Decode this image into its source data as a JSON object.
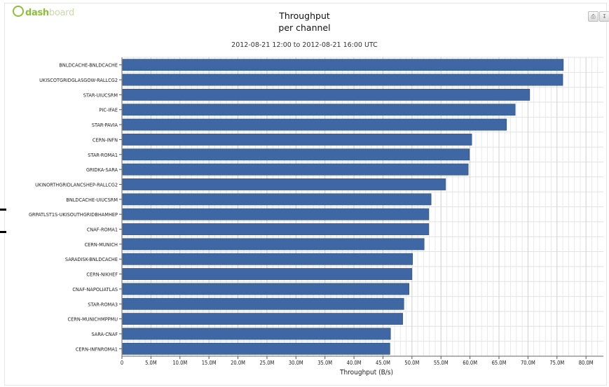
{
  "brand": {
    "prefix": "dash",
    "suffix": "board"
  },
  "chart_data": {
    "type": "bar",
    "orientation": "horizontal",
    "title_lines": [
      "Throughput",
      "per channel"
    ],
    "subtitle": "2012-08-21 12:00 to 2012-08-21 16:00 UTC",
    "xlabel": "Throughput (B/s)",
    "xlim": [
      0,
      83000000
    ],
    "x_ticks": [
      {
        "value": 0,
        "label": "0"
      },
      {
        "value": 5000000,
        "label": "5.0M"
      },
      {
        "value": 10000000,
        "label": "10.0M"
      },
      {
        "value": 15000000,
        "label": "15.0M"
      },
      {
        "value": 20000000,
        "label": "20.0M"
      },
      {
        "value": 25000000,
        "label": "25.0M"
      },
      {
        "value": 30000000,
        "label": "30.0M"
      },
      {
        "value": 35000000,
        "label": "35.0M"
      },
      {
        "value": 40000000,
        "label": "40.0M"
      },
      {
        "value": 45000000,
        "label": "45.0M"
      },
      {
        "value": 50000000,
        "label": "50.0M"
      },
      {
        "value": 55000000,
        "label": "55.0M"
      },
      {
        "value": 60000000,
        "label": "60.0M"
      },
      {
        "value": 65000000,
        "label": "65.0M"
      },
      {
        "value": 70000000,
        "label": "70.0M"
      },
      {
        "value": 75000000,
        "label": "75.0M"
      },
      {
        "value": 80000000,
        "label": "80.0M"
      }
    ],
    "grid": true,
    "bar_color": "#3f67a3",
    "categories": [
      "BNLDCACHE-BNLDCACHE",
      "UKISCOTGRIDGLASGOW-RALLCG2",
      "STAR-UIUCSRM",
      "PIC-IFAE",
      "STAR-PAVIA",
      "CERN-INFN",
      "STAR-ROMA1",
      "GRIDKA-SARA",
      "UKINORTHGRIDLANCSHEP-RALLCG2",
      "BNLDCACHE-UIUCSRM",
      "GRPATLST1S-UKISOUTHGRIDBHAMHEP",
      "CNAF-ROMA1",
      "CERN-MUNICH",
      "SARADISK-BNLDCACHE",
      "CERN-NIKHEF",
      "CNAF-NAPOLIATLAS",
      "STAR-ROMA3",
      "CERN-MUNICHMPPMU",
      "SARA-CNAF",
      "CERN-INFNROMA1"
    ],
    "values": [
      76100000,
      76000000,
      70300000,
      67800000,
      66300000,
      60300000,
      59900000,
      59700000,
      55800000,
      53300000,
      52900000,
      52900000,
      52100000,
      50100000,
      50000000,
      49500000,
      48600000,
      48400000,
      46300000,
      46200000
    ]
  }
}
